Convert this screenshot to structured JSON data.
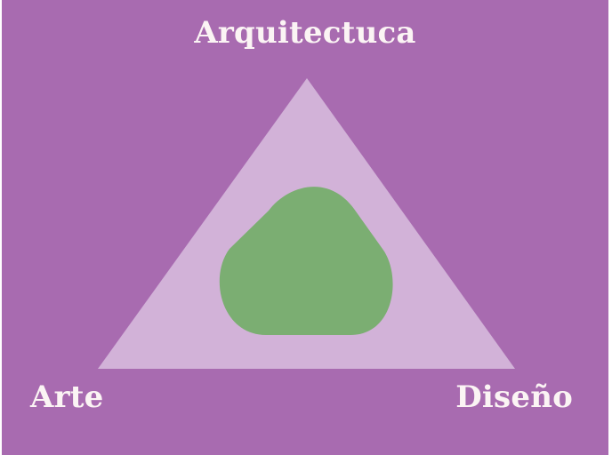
{
  "diagram": {
    "labels": {
      "top": "Arquitectuca",
      "left": "Arte",
      "right": "Diseño"
    },
    "colors": {
      "background": "#a86bb0",
      "triangle": "#d2b2d8",
      "center_shape": "#7bae72",
      "text": "#fbf4f4"
    }
  }
}
